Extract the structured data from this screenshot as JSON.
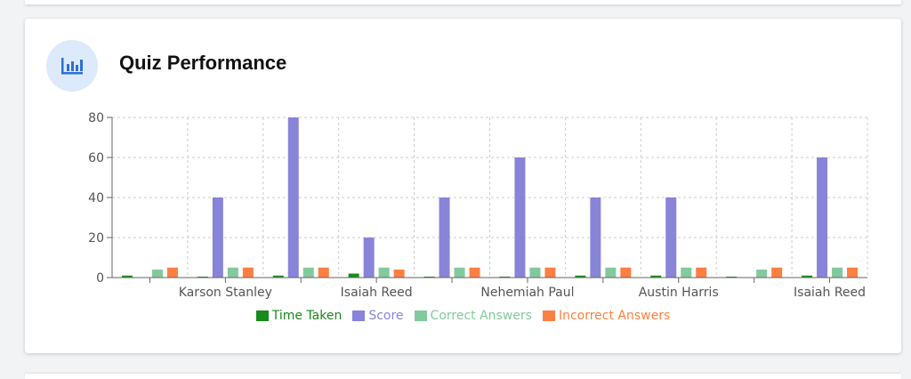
{
  "card": {
    "title": "Quiz Performance",
    "icon": "bar-chart-icon",
    "icon_color": "#2f6fd6"
  },
  "chart_data": {
    "type": "bar",
    "categories": [
      "",
      "Karson Stanley",
      "",
      "Isaiah Reed",
      "",
      "Nehemiah Paul",
      "",
      "Austin Harris",
      "",
      "Isaiah Reed"
    ],
    "series": [
      {
        "name": "Time Taken",
        "color": "#1a8a1a",
        "values": [
          1,
          0.5,
          1,
          2,
          0.5,
          0.5,
          1,
          1,
          0.5,
          1
        ]
      },
      {
        "name": "Score",
        "color": "#8884d8",
        "values": [
          0,
          40,
          80,
          20,
          40,
          60,
          40,
          40,
          0,
          60
        ]
      },
      {
        "name": "Correct Answers",
        "color": "#82ca9d",
        "values": [
          4,
          5,
          5,
          5,
          5,
          5,
          5,
          5,
          4,
          5
        ]
      },
      {
        "name": "Incorrect Answers",
        "color": "#fd7f42",
        "values": [
          5,
          5,
          5,
          4,
          5,
          5,
          5,
          5,
          5,
          5
        ]
      }
    ],
    "yticks": [
      0,
      20,
      40,
      60,
      80
    ],
    "ylim": [
      0,
      80
    ],
    "grid": true,
    "legend": "bottom"
  }
}
